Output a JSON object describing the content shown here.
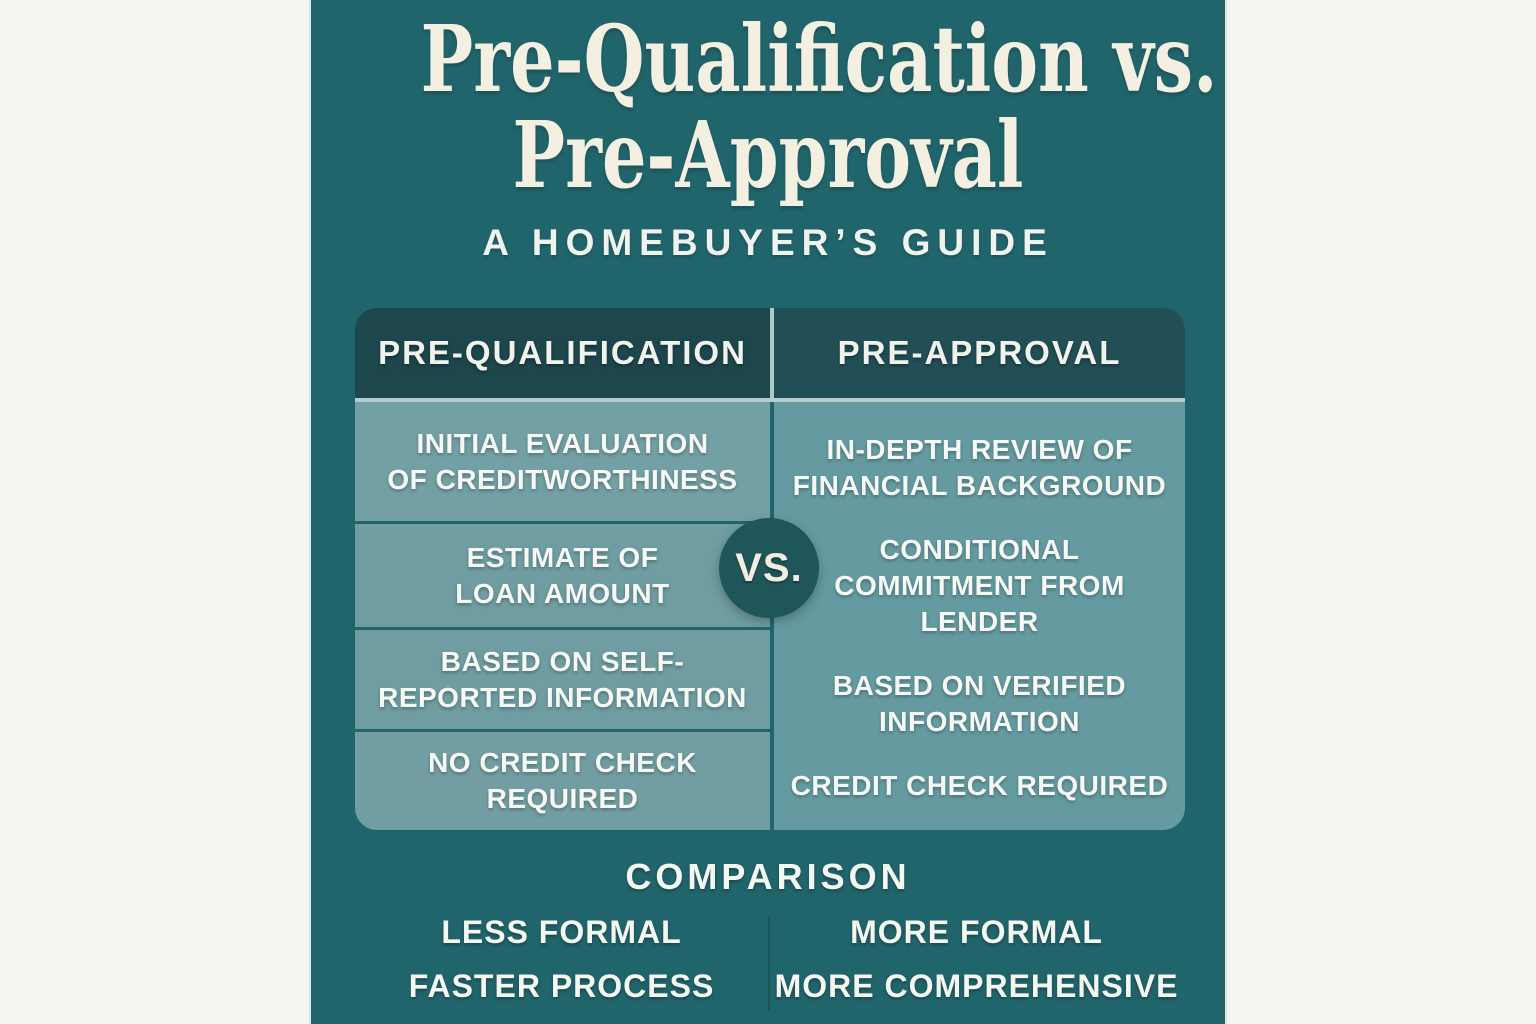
{
  "header": {
    "title_line1": "Pre-Qualification vs.",
    "title_line2": "Pre-Approval",
    "subtitle": "A HOMEBUYER’S GUIDE"
  },
  "table": {
    "vs_label": "VS.",
    "columns": [
      {
        "header": "PRE-QUALIFICATION",
        "rows": [
          [
            "INITIAL EVALUATION",
            "OF CREDITWORTHINESS"
          ],
          [
            "ESTIMATE OF",
            "LOAN AMOUNT"
          ],
          [
            "BASED ON SELF-",
            "REPORTED INFORMATION"
          ],
          [
            "NO CREDIT CHECK",
            "REQUIRED"
          ]
        ]
      },
      {
        "header": "PRE-APPROVAL",
        "rows": [
          [
            "IN-DEPTH REVIEW OF",
            "FINANCIAL BACKGROUND"
          ],
          [
            "CONDITIONAL",
            "COMMITMENT FROM",
            "LENDER"
          ],
          [
            "BASED ON VERIFIED",
            "INFORMATION"
          ],
          [
            "CREDIT CHECK REQUIRED"
          ]
        ]
      }
    ]
  },
  "comparison": {
    "heading": "COMPARISON",
    "left_items": [
      "LESS FORMAL",
      "FASTER PROCESS"
    ],
    "right_items": [
      "MORE FORMAL",
      "MORE COMPREHENSIVE"
    ]
  },
  "colors": {
    "page_background": "#f4f7f1",
    "panel_background": "#21656c",
    "header_left": "#1d474d",
    "header_right": "#224f55",
    "cell_left": "#6f9da2",
    "cell_right": "#659aa1",
    "vs_circle": "#1f5659",
    "title_text": "#f3efe1",
    "body_text": "#f6f8f3",
    "light_separator": "#b3cecd"
  }
}
